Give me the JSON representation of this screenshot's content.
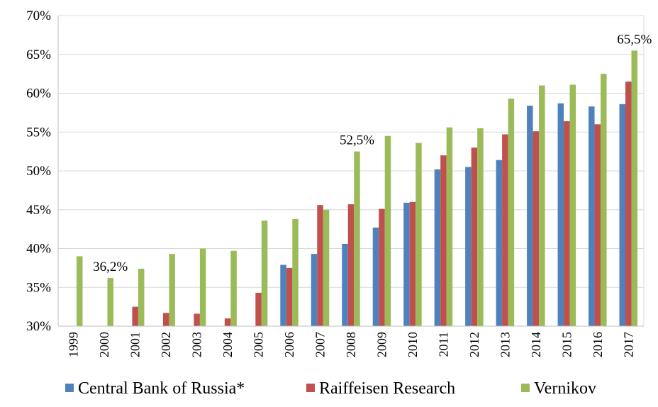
{
  "chart_data": {
    "type": "bar",
    "title": "",
    "xlabel": "",
    "ylabel": "",
    "ylim": [
      30,
      70
    ],
    "y_ticks": [
      "30%",
      "35%",
      "40%",
      "45%",
      "50%",
      "55%",
      "60%",
      "65%",
      "70%"
    ],
    "grid": "horizontal",
    "legend_position": "bottom",
    "categories": [
      "1999",
      "2000",
      "2001",
      "2002",
      "2003",
      "2004",
      "2005",
      "2006",
      "2007",
      "2008",
      "2009",
      "2010",
      "2011",
      "2012",
      "2013",
      "2014",
      "2015",
      "2016",
      "2017"
    ],
    "series": [
      {
        "name": "Central Bank of Russia*",
        "color": "#4F81BD",
        "values": [
          null,
          null,
          null,
          null,
          null,
          null,
          null,
          37.9,
          39.3,
          40.6,
          42.7,
          45.9,
          50.2,
          50.5,
          51.4,
          58.4,
          58.7,
          58.3,
          58.6
        ]
      },
      {
        "name": "Raiffeisen Research",
        "color": "#C0504D",
        "values": [
          null,
          null,
          32.5,
          31.7,
          31.6,
          31.0,
          34.3,
          37.5,
          45.6,
          45.7,
          45.1,
          46.0,
          52.0,
          53.0,
          54.7,
          55.1,
          56.4,
          56.0,
          61.5
        ]
      },
      {
        "name": "Vernikov",
        "color": "#9BBB59",
        "values": [
          39.0,
          36.2,
          37.4,
          39.3,
          40.0,
          39.7,
          43.6,
          43.8,
          45.0,
          52.5,
          54.5,
          53.6,
          55.6,
          55.5,
          59.3,
          61.0,
          61.1,
          62.5,
          65.5
        ]
      }
    ],
    "annotations": [
      {
        "text": "36,2%",
        "category": "2000"
      },
      {
        "text": "52,5%",
        "category": "2008"
      },
      {
        "text": "65,5%",
        "category": "2017"
      }
    ]
  }
}
